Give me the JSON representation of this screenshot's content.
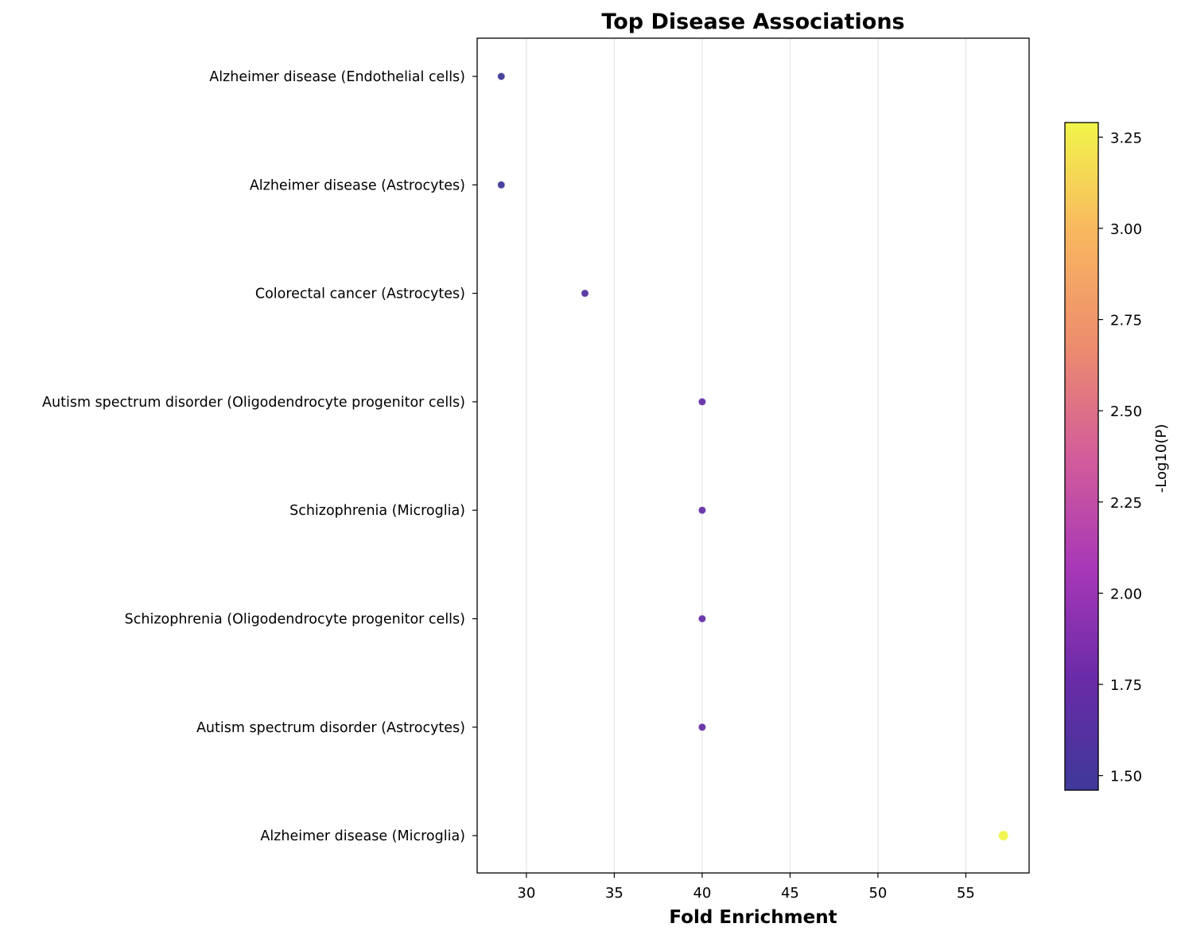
{
  "chart_data": {
    "type": "scatter",
    "title": "Top Disease Associations",
    "xlabel": "Fold Enrichment",
    "ylabel": "",
    "xlim": [
      27.2,
      58.6
    ],
    "xticks": [
      30,
      35,
      40,
      45,
      50,
      55
    ],
    "grid": "vertical",
    "categories": [
      "Alzheimer disease (Endothelial cells)",
      "Alzheimer disease (Astrocytes)",
      "Colorectal cancer (Astrocytes)",
      "Autism spectrum disorder (Oligodendrocyte progenitor cells)",
      "Schizophrenia (Microglia)",
      "Schizophrenia (Oligodendrocyte progenitor cells)",
      "Autism spectrum disorder (Astrocytes)",
      "Alzheimer disease (Microglia)"
    ],
    "x": [
      28.57,
      28.57,
      33.33,
      40.0,
      40.0,
      40.0,
      40.0,
      57.14
    ],
    "color_values": [
      1.46,
      1.46,
      1.6,
      1.72,
      1.72,
      1.72,
      1.72,
      3.29
    ],
    "colorbar": {
      "label": "-Log10(P)",
      "range": [
        1.46,
        3.29
      ],
      "ticks": [
        1.5,
        1.75,
        2.0,
        2.25,
        2.5,
        2.75,
        3.0,
        3.25
      ],
      "tick_labels": [
        "1.50",
        "1.75",
        "2.00",
        "2.25",
        "2.50",
        "2.75",
        "3.00",
        "3.25"
      ],
      "colormap": "plasma"
    },
    "colormap_stops": [
      "#3e3999",
      "#6a2ba8",
      "#a838b8",
      "#d35d9a",
      "#ed8d6e",
      "#f9b660",
      "#f1f54b"
    ]
  }
}
